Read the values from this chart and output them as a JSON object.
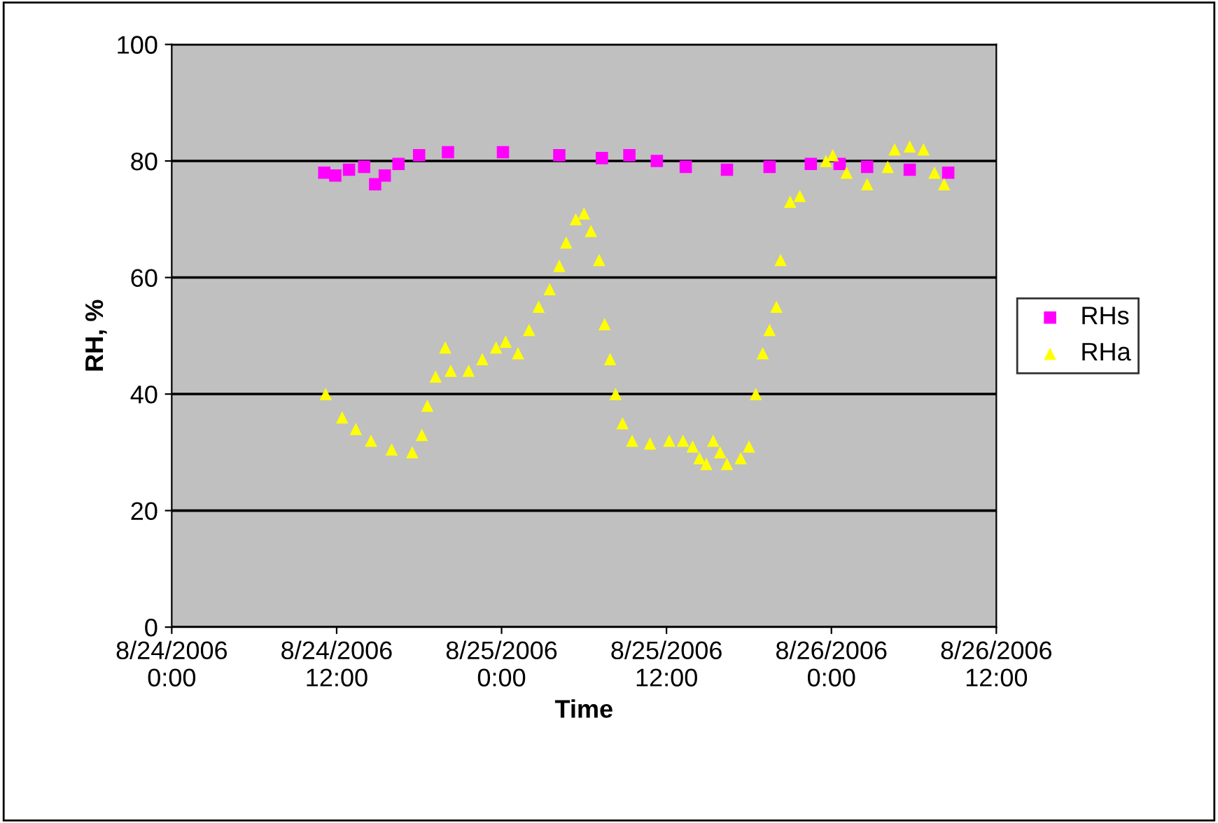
{
  "chart_data": {
    "type": "scatter",
    "xlabel": "Time",
    "ylabel": "RH, %",
    "xlim": [
      "2006-08-24T00:00",
      "2006-08-26T12:00"
    ],
    "xticks": [
      {
        "value": "2006-08-24T00:00",
        "label": "8/24/2006\n0:00"
      },
      {
        "value": "2006-08-24T12:00",
        "label": "8/24/2006\n12:00"
      },
      {
        "value": "2006-08-25T00:00",
        "label": "8/25/2006\n0:00"
      },
      {
        "value": "2006-08-25T12:00",
        "label": "8/25/2006\n12:00"
      },
      {
        "value": "2006-08-26T00:00",
        "label": "8/26/2006\n0:00"
      },
      {
        "value": "2006-08-26T12:00",
        "label": "8/26/2006\n12:00"
      }
    ],
    "ylim": [
      0,
      100
    ],
    "yticks": [
      0,
      20,
      40,
      60,
      80,
      100
    ],
    "grid": "y",
    "legend": "right",
    "series": [
      {
        "name": "RHs",
        "color": "#ff00ff",
        "marker": "square",
        "x": [
          "2006-08-24T11:06",
          "2006-08-24T11:54",
          "2006-08-24T12:54",
          "2006-08-24T14:00",
          "2006-08-24T14:48",
          "2006-08-24T15:30",
          "2006-08-24T16:30",
          "2006-08-24T18:00",
          "2006-08-24T20:06",
          "2006-08-25T00:06",
          "2006-08-25T04:12",
          "2006-08-25T07:18",
          "2006-08-25T09:18",
          "2006-08-25T11:18",
          "2006-08-25T13:24",
          "2006-08-25T16:24",
          "2006-08-25T19:30",
          "2006-08-25T22:30",
          "2006-08-26T00:36",
          "2006-08-26T02:36",
          "2006-08-26T05:42",
          "2006-08-26T08:30"
        ],
        "values": [
          78,
          77.5,
          78.5,
          79,
          76,
          77.5,
          79.5,
          81,
          81.5,
          81.5,
          81,
          80.5,
          81,
          80,
          79,
          78.5,
          79,
          79.5,
          79.5,
          79,
          78.5,
          78
        ]
      },
      {
        "name": "RHa",
        "color": "#ffff00",
        "marker": "triangle",
        "x": [
          "2006-08-24T11:12",
          "2006-08-24T12:24",
          "2006-08-24T13:24",
          "2006-08-24T14:30",
          "2006-08-24T16:00",
          "2006-08-24T17:30",
          "2006-08-24T18:12",
          "2006-08-24T18:36",
          "2006-08-24T19:12",
          "2006-08-24T19:54",
          "2006-08-24T20:18",
          "2006-08-24T21:36",
          "2006-08-24T22:36",
          "2006-08-24T23:36",
          "2006-08-25T00:18",
          "2006-08-25T01:12",
          "2006-08-25T02:00",
          "2006-08-25T02:42",
          "2006-08-25T03:30",
          "2006-08-25T04:12",
          "2006-08-25T04:42",
          "2006-08-25T05:24",
          "2006-08-25T06:00",
          "2006-08-25T06:30",
          "2006-08-25T07:06",
          "2006-08-25T07:30",
          "2006-08-25T07:54",
          "2006-08-25T08:18",
          "2006-08-25T08:48",
          "2006-08-25T09:30",
          "2006-08-25T10:48",
          "2006-08-25T12:12",
          "2006-08-25T13:12",
          "2006-08-25T13:54",
          "2006-08-25T14:24",
          "2006-08-25T14:54",
          "2006-08-25T15:24",
          "2006-08-25T15:54",
          "2006-08-25T16:24",
          "2006-08-25T17:24",
          "2006-08-25T18:00",
          "2006-08-25T18:30",
          "2006-08-25T19:00",
          "2006-08-25T19:30",
          "2006-08-25T20:00",
          "2006-08-25T20:18",
          "2006-08-25T21:00",
          "2006-08-25T21:42",
          "2006-08-25T23:36",
          "2006-08-26T00:06",
          "2006-08-26T01:06",
          "2006-08-26T02:36",
          "2006-08-26T04:06",
          "2006-08-26T04:36",
          "2006-08-26T05:42",
          "2006-08-26T06:42",
          "2006-08-26T07:30",
          "2006-08-26T08:12"
        ],
        "values": [
          40,
          36,
          34,
          32,
          30.5,
          30,
          33,
          38,
          43,
          48,
          44,
          44,
          46,
          48,
          49,
          47,
          51,
          55,
          58,
          62,
          66,
          70,
          71,
          68,
          63,
          52,
          46,
          40,
          35,
          32,
          31.5,
          32,
          32,
          31,
          29,
          28,
          32,
          30,
          28,
          29,
          31,
          40,
          47,
          51,
          55,
          63,
          73,
          74,
          80,
          81,
          78,
          76,
          79,
          82,
          82.5,
          82,
          78,
          76
        ]
      }
    ]
  }
}
